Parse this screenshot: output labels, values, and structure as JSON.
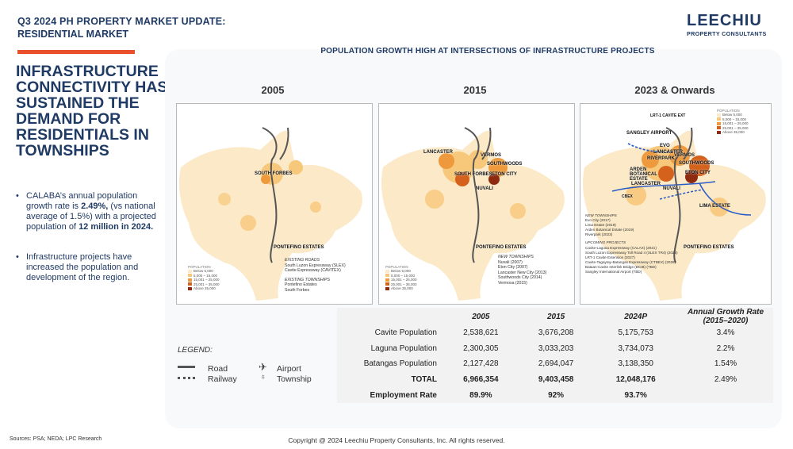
{
  "header": {
    "title": "Q3 2024 PH PROPERTY MARKET UPDATE:",
    "subtitle": "RESIDENTIAL MARKET",
    "logo_brand": "LEECHIU",
    "logo_sub": "PROPERTY CONSULTANTS"
  },
  "headline": "INFRASTRUCTURE CONNECTIVITY HAS SUSTAINED THE DEMAND FOR RESIDENTIALS IN TOWNSHIPS",
  "bullets": [
    {
      "pre": "CALABA’s annual population growth rate is ",
      "bold1": "2.49%,",
      "mid": " (vs national average of 1.5%) with a  projected population of ",
      "bold2": "12 million in 2024."
    },
    {
      "text": "Infrastructure projects have increased the population and development of the region."
    }
  ],
  "panel_title": "POPULATION GROWTH HIGH AT INTERSECTIONS OF INFRASTRUCTURE PROJECTS",
  "maps": [
    {
      "year": "2005",
      "labels": [
        "SOUTH FORBES",
        "PONTEFINO ESTATES"
      ],
      "legend_title": "POPULATION",
      "legend_items": [
        "Below 5,000",
        "5,000 – 15,000",
        "15,001 – 25,000",
        "25,001 – 35,000",
        "Above 35,000"
      ],
      "notes": [
        "EXISTING ROADS",
        "South Luzon Expressway (SLEX)",
        "Cavite Expressway (CAVITEX)",
        "EXISTING TOWNSHIPS",
        "Pontefino Estates",
        "South Forbes"
      ]
    },
    {
      "year": "2015",
      "labels": [
        "LANCASTER",
        "VERMOS",
        "SOUTHWOODS",
        "ETON CITY",
        "SOUTH FORBES",
        "NUVALI",
        "PONTEFINO ESTATES"
      ],
      "legend_title": "POPULATION",
      "legend_items": [
        "Below 5,000",
        "5,000 – 15,000",
        "15,001 – 25,000",
        "25,001 – 35,000",
        "Above 35,000"
      ],
      "notes": [
        "NEW TOWNSHIPS",
        "Nuvali (2007)",
        "Eton City (2007)",
        "Lancaster New City (2013)",
        "Southwoods City (2014)",
        "Vermosa (2015)"
      ]
    },
    {
      "year": "2023 & Onwards",
      "labels": [
        "LRT-1 CAVITE EXT",
        "SANGLEY AIRPORT",
        "EVO",
        "LANCASTER",
        "RIVERPARK",
        "VERMOS",
        "ARDEN BOTANICAL ESTATE",
        "LANCASTER",
        "SOUTHWOODS",
        "ETON CITY",
        "NUVALI",
        "CBEX",
        "LIMA ESTATE",
        "PONTEFINO ESTATES"
      ],
      "legend_title": "POPULATION",
      "legend_items": [
        "Below 5,000",
        "5,000 – 15,000",
        "15,001 – 25,000",
        "25,001 – 35,000",
        "Above 35,000"
      ],
      "notes": [
        "NEW TOWNSHIPS",
        "Evo City (2017)",
        "Lima Estate (2019)",
        "Arden Botanical Estate (2019)",
        "Riverpark (2023)",
        "UPCOMING PROJECTS",
        "Cavite-Laguna Expressway (CALAX) (2021)",
        "South Luzon Expressway Toll Road 4 (SLEX TR4) (2026)",
        "LRT-1 Cavite Extension (2027)",
        "Cavite-Tagaytay-Batangas Expressway (CTBEX) (2028)",
        "Bataan-Cavite Interlink Bridge (BCIB) (TBD)",
        "Sangley International Airport (TBD)"
      ]
    }
  ],
  "legend": {
    "title": "LEGEND:",
    "road": "Road",
    "railway": "Railway",
    "airport": "Airport",
    "township": "Township"
  },
  "table": {
    "headers": [
      "",
      "2005",
      "2015",
      "2024P",
      "Annual Growth Rate (2015–2020)"
    ],
    "rows": [
      [
        "Cavite Population",
        "2,538,621",
        "3,676,208",
        "5,175,753",
        "3.4%"
      ],
      [
        "Laguna Population",
        "2,300,305",
        "3,033,203",
        "3,734,073",
        "2.2%"
      ],
      [
        "Batangas Population",
        "2,127,428",
        "2,694,047",
        "3,138,350",
        "1.54%"
      ],
      [
        "TOTAL",
        "6,966,354",
        "9,403,458",
        "12,048,176",
        "2.49%"
      ],
      [
        "Employment Rate",
        "89.9%",
        "92%",
        "93.7%",
        ""
      ]
    ]
  },
  "footer": {
    "sources": "Sources: PSA; NEDA; LPC Research",
    "copyright": "Copyright @ 2024 Leechiu Property Consultants, Inc. All rights reserved."
  },
  "colors": {
    "navy": "#1f3a64",
    "accent": "#e8502c",
    "pop1": "#fbe9c7",
    "pop2": "#f7c77a",
    "pop3": "#ee9a3c",
    "pop4": "#d4621c",
    "pop5": "#8e2a10"
  }
}
